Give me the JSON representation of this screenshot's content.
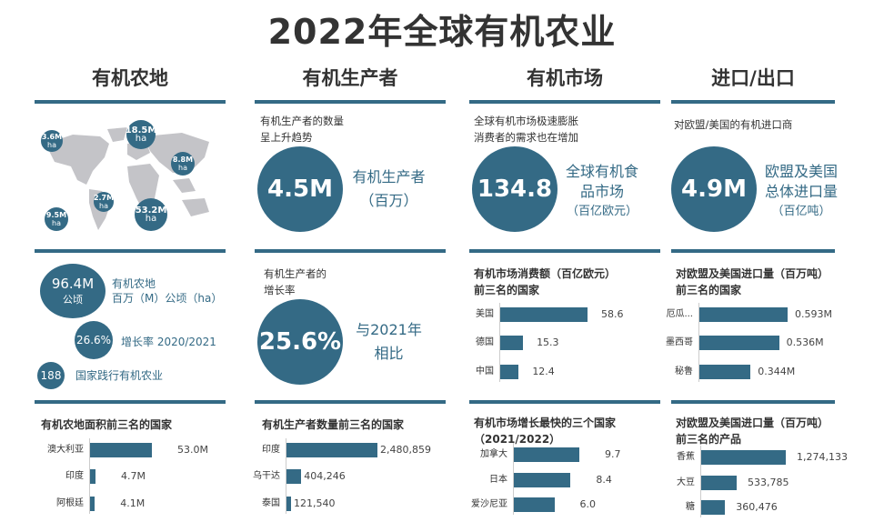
{
  "title": "2022年全球有机农业",
  "colors": {
    "accent": "#346a85",
    "map": "#c4c4c8",
    "text": "#333333"
  },
  "columns": [
    {
      "heading": "有机农地"
    },
    {
      "heading": "有机生产者"
    },
    {
      "heading": "有机市场"
    },
    {
      "heading": "进口/出口"
    }
  ],
  "land": {
    "map_bubbles": [
      {
        "value": "3.6M",
        "unit": "ha"
      },
      {
        "value": "18.5M",
        "unit": "ha"
      },
      {
        "value": "8.8M",
        "unit": "ha"
      },
      {
        "value": "2.7M",
        "unit": "ha"
      },
      {
        "value": "9.5M",
        "unit": "ha"
      },
      {
        "value": "53.2M",
        "unit": "ha"
      }
    ],
    "stat1": {
      "value": "96.4M",
      "unit": "公顷",
      "label1": "有机农地",
      "label2": "百万（M）公顷（ha）"
    },
    "stat2": {
      "value": "26.6%",
      "label": "增长率 2020/2021"
    },
    "stat3": {
      "value": "188",
      "label": "国家践行有机农业"
    }
  },
  "producers": {
    "intro1": "有机生产者的数量",
    "intro2": "呈上升趋势",
    "value": "4.5M",
    "caption1": "有机生产者",
    "caption2": "（百万）",
    "growth_intro1": "有机生产者的",
    "growth_intro2": "增长率",
    "growth_value": "25.6%",
    "growth_caption1": "与2021年",
    "growth_caption2": "相比"
  },
  "market": {
    "intro1": "全球有机市场极速膨胀",
    "intro2": "消费者的需求也在增加",
    "value": "134.8",
    "caption1": "全球有机食",
    "caption2": "品市场",
    "caption3": "（百亿欧元）"
  },
  "imports": {
    "intro": "对欧盟/美国的有机进口商",
    "value": "4.9M",
    "caption1": "欧盟及美国",
    "caption2": "总体进口量",
    "caption3": "（百亿吨）"
  },
  "chart_data": [
    {
      "type": "bar",
      "orientation": "horizontal",
      "title": "有机农地面积前三名的国家",
      "categories": [
        "澳大利亚",
        "印度",
        "阿根廷"
      ],
      "values": [
        53.0,
        4.7,
        4.1
      ],
      "labels": [
        "53.0M",
        "4.7M",
        "4.1M"
      ]
    },
    {
      "type": "bar",
      "orientation": "horizontal",
      "title": "有机生产者数量前三名的国家",
      "categories": [
        "印度",
        "乌干达",
        "泰国"
      ],
      "values": [
        2480859,
        404246,
        121540
      ],
      "labels": [
        "2,480,859",
        "404,246",
        "121,540"
      ]
    },
    {
      "type": "bar",
      "orientation": "horizontal",
      "title": "有机市场消费额（百亿欧元）",
      "title2": "前三名的国家",
      "categories": [
        "美国",
        "德国",
        "中国"
      ],
      "values": [
        58.6,
        15.3,
        12.4
      ],
      "labels": [
        "58.6",
        "15.3",
        "12.4"
      ]
    },
    {
      "type": "bar",
      "orientation": "horizontal",
      "title": "有机市场增长最快的三个国家",
      "title2": "（2021/2022）",
      "categories": [
        "加拿大",
        "日本",
        "爱沙尼亚"
      ],
      "values": [
        9.7,
        8.4,
        6.0
      ],
      "labels": [
        "9.7",
        "8.4",
        "6.0"
      ]
    },
    {
      "type": "bar",
      "orientation": "horizontal",
      "title": "对欧盟及美国进口量（百万吨）",
      "title2": "前三名的国家",
      "categories": [
        "厄瓜...",
        "墨西哥",
        "秘鲁"
      ],
      "values": [
        0.593,
        0.536,
        0.344
      ],
      "labels": [
        "0.593M",
        "0.536M",
        "0.344M"
      ]
    },
    {
      "type": "bar",
      "orientation": "horizontal",
      "title": "对欧盟及美国进口量（百万吨）",
      "title2": "前三名的产品",
      "categories": [
        "香蕉",
        "大豆",
        "糖"
      ],
      "values": [
        1274133,
        533785,
        360476
      ],
      "labels": [
        "1,274,133",
        "533,785",
        "360,476"
      ]
    }
  ]
}
